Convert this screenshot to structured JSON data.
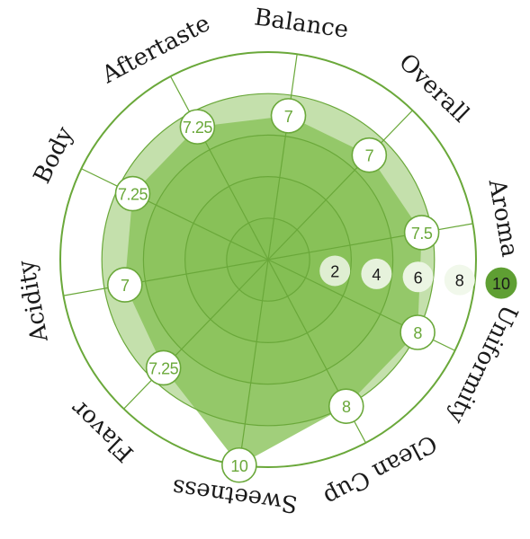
{
  "chart_data": {
    "type": "radar",
    "title": "",
    "rlim": [
      0,
      10
    ],
    "rings": [
      2,
      4,
      6,
      8,
      10
    ],
    "axes": [
      "Aroma",
      "Overall",
      "Balance",
      "Aftertaste",
      "Body",
      "Acidity",
      "Flavor",
      "Sweetness",
      "Clean Cup",
      "Uniformity"
    ],
    "values": [
      7.5,
      7,
      7,
      7.25,
      7.25,
      7,
      7.25,
      10,
      8,
      8
    ],
    "value_labels": [
      "7.5",
      "7",
      "7",
      "7.25",
      "7.25",
      "7",
      "7.25",
      "10",
      "8",
      "8"
    ],
    "scale_labels": [
      "2",
      "4",
      "6",
      "8",
      "10"
    ],
    "colors": {
      "line": "#6aa83a",
      "fill": "#86c156",
      "ring_fills": [
        "#6fae3e",
        "#7ab74a",
        "#86bf57",
        "#93c768"
      ],
      "badge_max": "#5f9f33"
    }
  }
}
